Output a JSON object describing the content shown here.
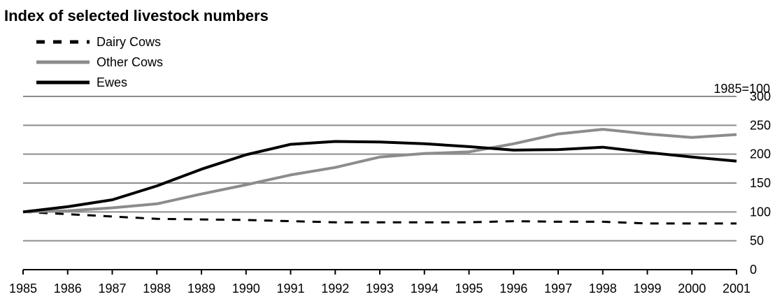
{
  "chart_data": {
    "type": "line",
    "title": "Index of selected livestock numbers",
    "note": "1985=100",
    "x": [
      "1985",
      "1986",
      "1987",
      "1988",
      "1989",
      "1990",
      "1991",
      "1992",
      "1993",
      "1994",
      "1995",
      "1996",
      "1997",
      "1998",
      "1999",
      "2000",
      "2001"
    ],
    "ylim": [
      0,
      300
    ],
    "yticks": [
      "0",
      "50",
      "100",
      "150",
      "200",
      "250",
      "300"
    ],
    "grid": true,
    "legend_position": "top-left",
    "y_axis_side": "right",
    "series": [
      {
        "name": "Dairy Cows",
        "style": "dashed",
        "color": "#000000",
        "values": [
          100,
          96,
          92,
          88,
          87,
          86,
          84,
          82,
          82,
          82,
          82,
          84,
          83,
          83,
          80,
          80,
          80
        ]
      },
      {
        "name": "Other Cows",
        "style": "solid",
        "color": "#8c8c8c",
        "values": [
          100,
          102,
          107,
          114,
          131,
          147,
          164,
          177,
          195,
          201,
          204,
          218,
          235,
          243,
          235,
          229,
          234
        ]
      },
      {
        "name": "Ewes",
        "style": "solid",
        "color": "#000000",
        "values": [
          100,
          109,
          121,
          145,
          174,
          199,
          217,
          222,
          221,
          218,
          213,
          207,
          208,
          212,
          203,
          195,
          188
        ]
      }
    ]
  }
}
